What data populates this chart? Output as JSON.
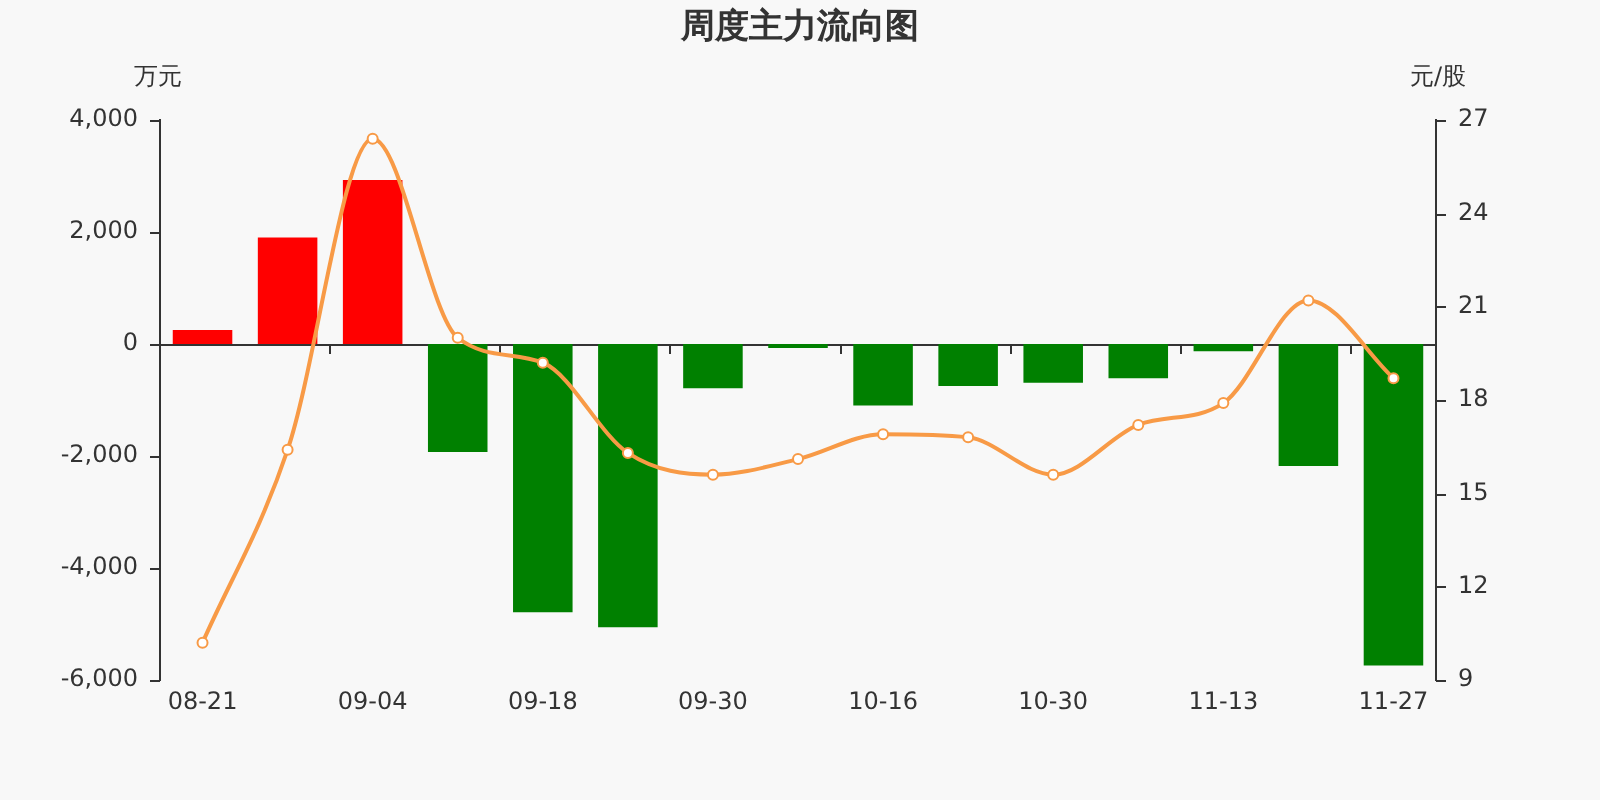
{
  "chart_data": {
    "type": "bar",
    "title": "周度主力流向图",
    "ylabel": "万元",
    "y2label": "元/股",
    "categories": [
      "08-21",
      null,
      "09-04",
      null,
      "09-18",
      null,
      "09-30",
      null,
      "10-16",
      null,
      "10-30",
      null,
      "11-13",
      null,
      "11-27"
    ],
    "series": [
      {
        "values": [
          250,
          1900,
          2930,
          -1930,
          -4790,
          -5060,
          -790,
          -70,
          -1100,
          -750,
          -690,
          -610,
          -130,
          -2180,
          -5740
        ],
        "colors": [
          "#ff0000",
          "#ff0000",
          "#ff0000",
          "#008000",
          "#008000",
          "#008000",
          "#008000",
          "#008000",
          "#008000",
          "#008000",
          "#008000",
          "#008000",
          "#008000",
          "#008000",
          "#008000"
        ]
      },
      {
        "type": "line",
        "axis": "y2",
        "color": "#f89a46",
        "values": [
          10.2,
          16.4,
          26.4,
          20.0,
          19.2,
          16.3,
          15.6,
          16.1,
          16.9,
          16.8,
          15.6,
          17.2,
          17.9,
          21.2,
          18.7
        ]
      }
    ],
    "ylim": [
      -6000,
      4000
    ],
    "yticks": [
      {
        "value": -6000,
        "label": "-6,000"
      },
      {
        "value": -4000,
        "label": "-4,000"
      },
      {
        "value": -2000,
        "label": "-2,000"
      },
      0,
      {
        "value": 2000,
        "label": "2,000"
      },
      {
        "value": 4000,
        "label": "4,000"
      }
    ],
    "y2lim": [
      9,
      27
    ],
    "y2ticks": [
      9,
      12,
      15,
      18,
      21,
      24,
      27
    ],
    "ref_lines": [
      {
        "axis": "y",
        "value": 0,
        "color": "#333333"
      }
    ],
    "marker": "circle",
    "grid": false,
    "legend": false
  }
}
